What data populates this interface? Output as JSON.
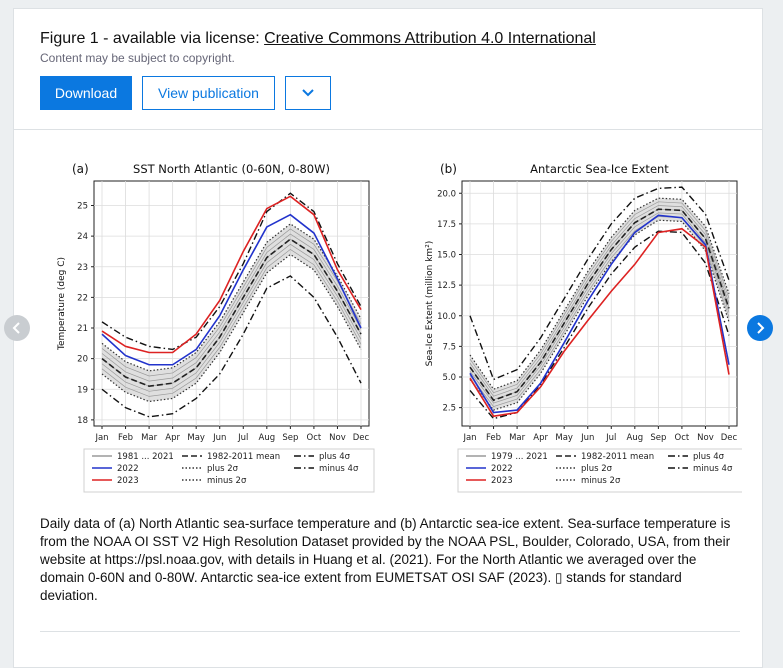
{
  "header": {
    "title_prefix": "Figure 1 - available via license: ",
    "license_link": "Creative Commons Attribution 4.0 International",
    "copyright_note": "Content may be subject to copyright."
  },
  "buttons": {
    "download": "Download",
    "view_publication": "View publication",
    "more_icon": "chevron-down-icon"
  },
  "nav": {
    "prev_icon": "chevron-left-icon",
    "next_icon": "chevron-right-icon"
  },
  "caption": "Daily data of (a) North Atlantic sea-surface temperature and (b) Antarctic sea-ice extent. Sea-surface temperature is from the NOAA OI SST V2 High Resolution Dataset provided by the NOAA PSL, Boulder, Colorado, USA, from their website at https://psl.noaa.gov, with details in Huang et al. (2021). For the North Atlantic we averaged over the domain 0-60N and 0-80W. Antarctic sea-ice extent from EUMETSAT OSI SAF (2023). ▯ stands for standard deviation.",
  "colors": {
    "accent": "#0b78e0",
    "series_2022": "#2233cc",
    "series_2023": "#dd2222"
  },
  "chart_data": [
    {
      "type": "line",
      "panel_label": "(a)",
      "title": "SST North Atlantic (0-60N, 0-80W)",
      "ylabel": "Temperature (deg C)",
      "xlabel": "",
      "categories": [
        "Jan",
        "Feb",
        "Mar",
        "Apr",
        "May",
        "Jun",
        "Jul",
        "Aug",
        "Sep",
        "Oct",
        "Nov",
        "Dec"
      ],
      "yticks": [
        "18",
        "19",
        "20",
        "21",
        "22",
        "23",
        "24",
        "25"
      ],
      "ylim": [
        17.8,
        25.8
      ],
      "grid": true,
      "legend": {
        "position": "bottom",
        "col1": [
          "1981 ... 2021",
          "2022",
          "2023"
        ],
        "col2": [
          "1982-2011 mean",
          "plus 2σ",
          "minus 2σ"
        ],
        "col3": [
          "plus 4σ",
          "minus 4σ"
        ]
      },
      "series": [
        {
          "name": "1982-2011 mean",
          "values": [
            20.0,
            19.4,
            19.1,
            19.2,
            19.7,
            20.7,
            22.0,
            23.3,
            23.9,
            23.4,
            22.2,
            20.8
          ]
        },
        {
          "name": "plus 2σ",
          "values": [
            20.5,
            19.9,
            19.6,
            19.7,
            20.2,
            21.2,
            22.5,
            23.8,
            24.4,
            23.9,
            22.7,
            21.3
          ]
        },
        {
          "name": "minus 2σ",
          "values": [
            19.5,
            18.9,
            18.6,
            18.7,
            19.2,
            20.2,
            21.5,
            22.8,
            23.4,
            22.9,
            21.7,
            20.3
          ]
        },
        {
          "name": "plus 4σ",
          "values": [
            21.2,
            20.7,
            20.4,
            20.3,
            20.7,
            21.7,
            23.1,
            24.8,
            25.4,
            24.8,
            23.1,
            21.7
          ]
        },
        {
          "name": "minus 4σ",
          "values": [
            19.0,
            18.4,
            18.1,
            18.2,
            18.7,
            19.5,
            20.8,
            22.3,
            22.7,
            22.0,
            20.7,
            19.2
          ]
        },
        {
          "name": "2022",
          "values": [
            20.8,
            20.1,
            19.8,
            19.8,
            20.3,
            21.4,
            22.9,
            24.3,
            24.7,
            24.1,
            22.6,
            21.0
          ]
        },
        {
          "name": "2023",
          "values": [
            20.9,
            20.4,
            20.2,
            20.2,
            20.8,
            21.9,
            23.5,
            24.9,
            25.3,
            24.7,
            22.9,
            21.6
          ]
        }
      ]
    },
    {
      "type": "line",
      "panel_label": "(b)",
      "title": "Antarctic Sea-Ice Extent",
      "ylabel": "Sea-Ice Extent (million km²)",
      "xlabel": "",
      "categories": [
        "Jan",
        "Feb",
        "Mar",
        "Apr",
        "May",
        "Jun",
        "Jul",
        "Aug",
        "Sep",
        "Oct",
        "Nov",
        "Dec"
      ],
      "yticks": [
        "2.5",
        "5.0",
        "7.5",
        "10.0",
        "12.5",
        "15.0",
        "17.5",
        "20.0"
      ],
      "ylim": [
        1.0,
        21.0
      ],
      "grid": true,
      "legend": {
        "position": "bottom",
        "col1": [
          "1979 ... 2021",
          "2022",
          "2023"
        ],
        "col2": [
          "1982-2011 mean",
          "plus 2σ",
          "minus 2σ"
        ],
        "col3": [
          "plus 4σ",
          "minus 4σ"
        ]
      },
      "series": [
        {
          "name": "1982-2011 mean",
          "values": [
            5.8,
            3.1,
            3.8,
            6.2,
            9.4,
            12.6,
            15.4,
            17.6,
            18.7,
            18.6,
            16.3,
            10.6
          ]
        },
        {
          "name": "plus 2σ",
          "values": [
            6.8,
            4.0,
            4.7,
            7.2,
            10.4,
            13.6,
            16.4,
            18.6,
            19.6,
            19.5,
            17.3,
            11.8
          ]
        },
        {
          "name": "minus 2σ",
          "values": [
            4.8,
            2.3,
            2.9,
            5.3,
            8.4,
            11.6,
            14.4,
            16.6,
            17.8,
            17.7,
            15.3,
            9.5
          ]
        },
        {
          "name": "plus 4σ",
          "values": [
            10.0,
            4.8,
            5.6,
            8.2,
            11.4,
            14.6,
            17.5,
            19.6,
            20.4,
            20.5,
            18.3,
            12.9
          ]
        },
        {
          "name": "minus 4σ",
          "values": [
            3.9,
            1.6,
            2.1,
            4.4,
            7.4,
            10.6,
            13.4,
            15.6,
            16.9,
            16.8,
            14.3,
            8.4
          ]
        },
        {
          "name": "2022",
          "values": [
            5.3,
            2.1,
            2.3,
            4.5,
            7.8,
            11.2,
            14.2,
            16.8,
            18.2,
            18.0,
            15.8,
            6.0
          ]
        },
        {
          "name": "2023",
          "values": [
            4.9,
            1.8,
            2.1,
            4.2,
            7.1,
            9.6,
            12.0,
            14.2,
            16.8,
            17.1,
            15.6,
            5.2
          ]
        }
      ]
    }
  ]
}
